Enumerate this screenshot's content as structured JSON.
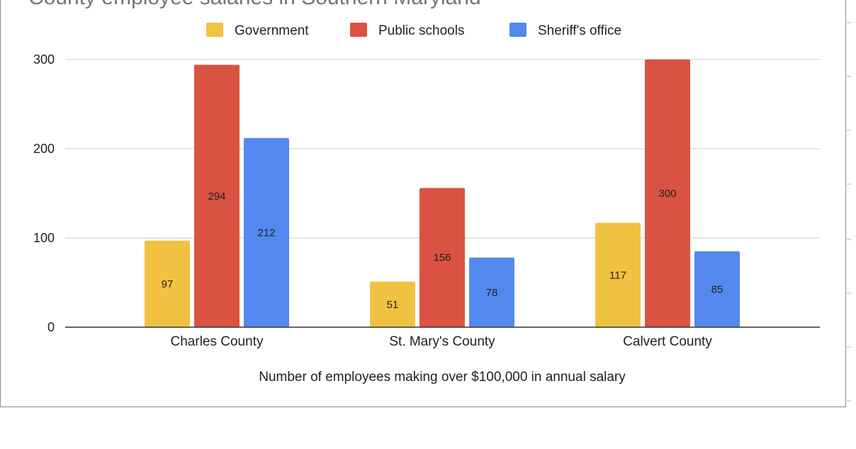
{
  "chart_data": {
    "type": "bar",
    "title": "County employee salaries in Southern Maryland",
    "xlabel": "Number of employees making over $100,000 in annual salary",
    "ylabel": "",
    "categories": [
      "Charles County",
      "St. Mary's County",
      "Calvert County"
    ],
    "series": [
      {
        "name": "Government",
        "values": [
          97,
          51,
          117
        ],
        "color": "#f1c142"
      },
      {
        "name": "Public schools",
        "values": [
          294,
          156,
          300
        ],
        "color": "#da5242"
      },
      {
        "name": "Sheriff's office",
        "values": [
          212,
          78,
          85
        ],
        "color": "#5388ee"
      }
    ],
    "ylim": [
      0,
      300
    ],
    "yticks": [
      0,
      100,
      200,
      300
    ],
    "grid": true,
    "legend_position": "top",
    "data_labels": true
  }
}
